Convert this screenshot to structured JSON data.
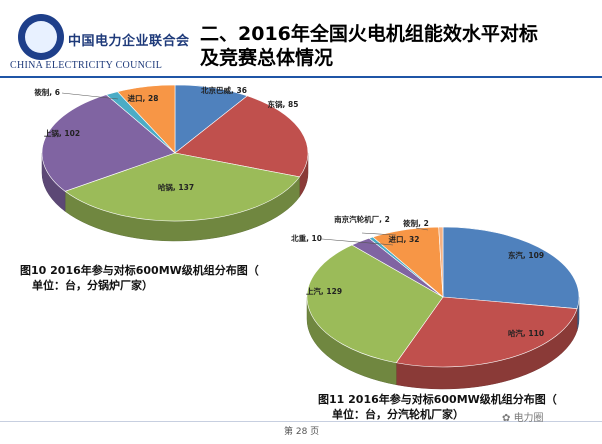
{
  "logo": {
    "org_cn": "中国电力企业联合会",
    "org_en": "CHINA ELECTRICITY COUNCIL"
  },
  "title": {
    "line1": "二、2016年全国火电机组能效水平对标",
    "line2": "及竞赛总体情况"
  },
  "chart_data": [
    {
      "type": "pie",
      "title": "",
      "caption_line1": "图10   2016年参与对标600MW级机组分布图（",
      "caption_line2": "单位：台，分锅炉厂家）",
      "slices": [
        {
          "label": "北京巴威",
          "value": 36,
          "color": "#4f81bd"
        },
        {
          "label": "东锅",
          "value": 85,
          "color": "#c0504d"
        },
        {
          "label": "哈锅",
          "value": 137,
          "color": "#9bbb59"
        },
        {
          "label": "上锅",
          "value": 102,
          "color": "#8064a2"
        },
        {
          "label": "筱制",
          "value": 6,
          "color": "#4bacc6"
        },
        {
          "label": "进口",
          "value": 28,
          "color": "#f79646"
        }
      ]
    },
    {
      "type": "pie",
      "title": "",
      "caption_line1": "图11   2016年参与对标600MW级机组分布图（",
      "caption_line2": "单位：台，分汽轮机厂家）",
      "slices": [
        {
          "label": "东汽",
          "value": 109,
          "color": "#4f81bd"
        },
        {
          "label": "哈汽",
          "value": 110,
          "color": "#c0504d"
        },
        {
          "label": "上汽",
          "value": 129,
          "color": "#9bbb59"
        },
        {
          "label": "北重",
          "value": 10,
          "color": "#8064a2"
        },
        {
          "label": "南京汽轮机厂",
          "value": 2,
          "color": "#4bacc6"
        },
        {
          "label": "进口",
          "value": 32,
          "color": "#f79646"
        },
        {
          "label": "筱制",
          "value": 2,
          "color": "#f4b183"
        }
      ]
    }
  ],
  "footer": {
    "page": "第 28 页",
    "watermark": "电力圈"
  }
}
